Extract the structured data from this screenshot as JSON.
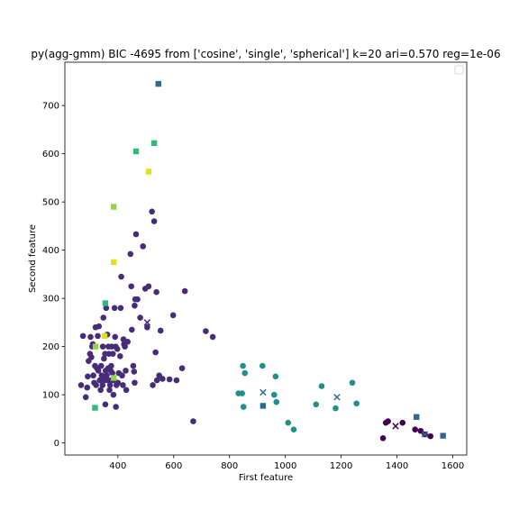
{
  "chart_data": {
    "type": "scatter",
    "title": "py(agg-gmm) BIC -4695 from ['cosine', 'single', 'spherical'] k=20 ari=0.570 reg=1e-06",
    "xlabel": "First feature",
    "ylabel": "Second feature",
    "xlim": [
      210,
      1650
    ],
    "ylim": [
      -25,
      790
    ],
    "xticks": [
      400,
      600,
      800,
      1000,
      1200,
      1400,
      1600
    ],
    "yticks": [
      0,
      100,
      200,
      300,
      400,
      500,
      600,
      700
    ],
    "grid": false,
    "legend": "top-right (empty)",
    "series": [
      {
        "color": "#472c7a",
        "marker": "circle",
        "points": [
          [
            268,
            120
          ],
          [
            275,
            222
          ],
          [
            285,
            95
          ],
          [
            290,
            115
          ],
          [
            292,
            138
          ],
          [
            295,
            170
          ],
          [
            300,
            185
          ],
          [
            302,
            220
          ],
          [
            305,
            178
          ],
          [
            308,
            200
          ],
          [
            310,
            205
          ],
          [
            312,
            140
          ],
          [
            315,
            125
          ],
          [
            318,
            160
          ],
          [
            320,
            240
          ],
          [
            322,
            120
          ],
          [
            325,
            155
          ],
          [
            328,
            222
          ],
          [
            330,
            150
          ],
          [
            332,
            242
          ],
          [
            335,
            130
          ],
          [
            338,
            110
          ],
          [
            340,
            160
          ],
          [
            342,
            140
          ],
          [
            345,
            120
          ],
          [
            346,
            200
          ],
          [
            348,
            260
          ],
          [
            350,
            175
          ],
          [
            352,
            130
          ],
          [
            354,
            185
          ],
          [
            355,
            80
          ],
          [
            356,
            150
          ],
          [
            358,
            280
          ],
          [
            360,
            140
          ],
          [
            362,
            225
          ],
          [
            364,
            130
          ],
          [
            365,
            155
          ],
          [
            366,
            200
          ],
          [
            368,
            185
          ],
          [
            370,
            110
          ],
          [
            372,
            120
          ],
          [
            374,
            150
          ],
          [
            375,
            130
          ],
          [
            376,
            160
          ],
          [
            378,
            200
          ],
          [
            380,
            145
          ],
          [
            382,
            185
          ],
          [
            384,
            100
          ],
          [
            386,
            130
          ],
          [
            388,
            280
          ],
          [
            390,
            220
          ],
          [
            392,
            200
          ],
          [
            393,
            75
          ],
          [
            395,
            120
          ],
          [
            398,
            195
          ],
          [
            400,
            125
          ],
          [
            403,
            145
          ],
          [
            408,
            180
          ],
          [
            410,
            280
          ],
          [
            412,
            345
          ],
          [
            415,
            140
          ],
          [
            418,
            120
          ],
          [
            420,
            215
          ],
          [
            422,
            205
          ],
          [
            425,
            200
          ],
          [
            428,
            150
          ],
          [
            430,
            110
          ],
          [
            435,
            210
          ],
          [
            445,
            392
          ],
          [
            448,
            325
          ],
          [
            450,
            235
          ],
          [
            455,
            160
          ],
          [
            458,
            148
          ],
          [
            460,
            125
          ],
          [
            460,
            285
          ],
          [
            462,
            298
          ],
          [
            465,
            433
          ],
          [
            470,
            298
          ],
          [
            480,
            260
          ],
          [
            490,
            408
          ],
          [
            498,
            320
          ],
          [
            505,
            240
          ],
          [
            510,
            325
          ],
          [
            522,
            480
          ],
          [
            525,
            120
          ],
          [
            530,
            460
          ],
          [
            535,
            188
          ],
          [
            538,
            313
          ],
          [
            540,
            130
          ],
          [
            548,
            140
          ],
          [
            553,
            233
          ],
          [
            560,
            133
          ],
          [
            585,
            132
          ],
          [
            598,
            265
          ],
          [
            610,
            130
          ],
          [
            630,
            155
          ],
          [
            640,
            315
          ],
          [
            670,
            45
          ],
          [
            715,
            232
          ],
          [
            740,
            220
          ]
        ]
      },
      {
        "color": "#440154",
        "marker": "circle",
        "points": [
          [
            1350,
            10
          ],
          [
            1360,
            42
          ],
          [
            1368,
            45
          ],
          [
            1420,
            42
          ],
          [
            1465,
            28
          ],
          [
            1485,
            25
          ],
          [
            1500,
            18
          ],
          [
            1520,
            14
          ]
        ]
      },
      {
        "color": "#21908d",
        "marker": "circle",
        "points": [
          [
            832,
            103
          ],
          [
            845,
            103
          ],
          [
            848,
            160
          ],
          [
            850,
            75
          ],
          [
            855,
            145
          ],
          [
            918,
            160
          ],
          [
            960,
            100
          ],
          [
            965,
            138
          ],
          [
            968,
            85
          ],
          [
            1010,
            42
          ],
          [
            1030,
            28
          ],
          [
            1110,
            80
          ],
          [
            1130,
            118
          ],
          [
            1180,
            72
          ],
          [
            1240,
            125
          ],
          [
            1255,
            82
          ]
        ]
      },
      {
        "color": "#31688e",
        "marker": "square",
        "points": [
          [
            545,
            745
          ],
          [
            920,
            77
          ],
          [
            1470,
            54
          ],
          [
            1565,
            15
          ]
        ]
      },
      {
        "color": "#35b779",
        "marker": "square",
        "points": [
          [
            465,
            605
          ],
          [
            530,
            622
          ],
          [
            318,
            73
          ],
          [
            355,
            290
          ]
        ]
      },
      {
        "color": "#90d743",
        "marker": "square",
        "points": [
          [
            385,
            490
          ],
          [
            385,
            135
          ],
          [
            320,
            200
          ]
        ]
      },
      {
        "color": "#dde318",
        "marker": "square",
        "points": [
          [
            510,
            563
          ],
          [
            385,
            375
          ],
          [
            352,
            222
          ]
        ]
      }
    ],
    "centroids": {
      "marker": "x",
      "points": [
        {
          "x": 505,
          "y": 250,
          "color": "#472c7a"
        },
        {
          "x": 920,
          "y": 105,
          "color": "#31688e"
        },
        {
          "x": 1185,
          "y": 95,
          "color": "#31688e"
        },
        {
          "x": 1395,
          "y": 35,
          "color": "#440154"
        },
        {
          "x": 1500,
          "y": 18,
          "color": "#31688e"
        }
      ]
    }
  }
}
